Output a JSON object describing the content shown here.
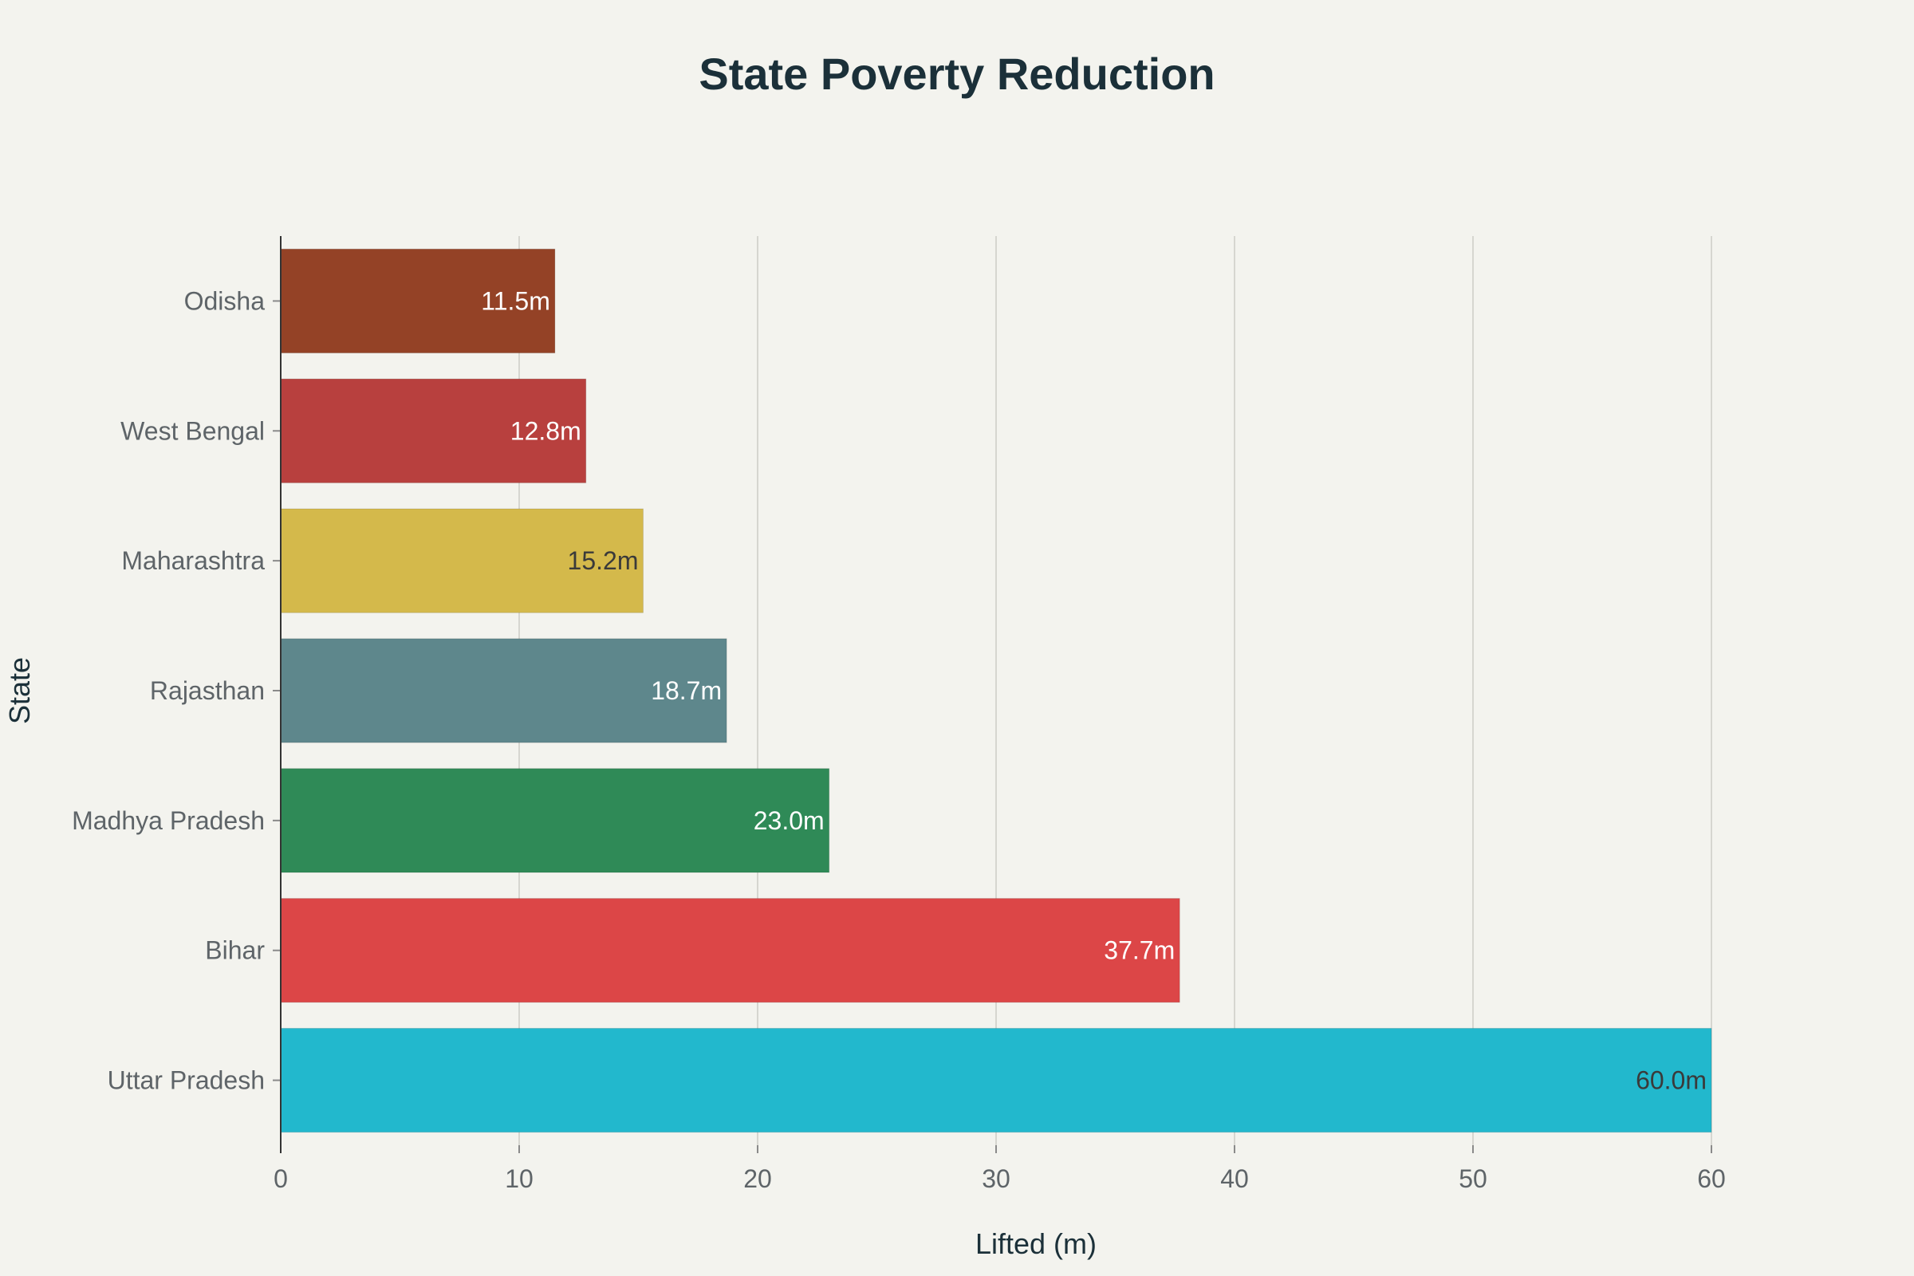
{
  "chart_data": {
    "type": "bar",
    "orientation": "horizontal",
    "title": "State Poverty Reduction",
    "xlabel": "Lifted (m)",
    "ylabel": "State",
    "xlim": [
      0,
      60
    ],
    "xticks": [
      0,
      10,
      20,
      30,
      40,
      50,
      60
    ],
    "grid": true,
    "categories": [
      "Odisha",
      "West Bengal",
      "Maharashtra",
      "Rajasthan",
      "Madhya Pradesh",
      "Bihar",
      "Uttar Pradesh"
    ],
    "values": [
      11.5,
      12.8,
      15.2,
      18.7,
      23.0,
      37.7,
      60.0
    ],
    "data_labels": [
      "11.5m",
      "12.8m",
      "15.2m",
      "18.7m",
      "23.0m",
      "37.7m",
      "60.0m"
    ],
    "colors": [
      "#944226",
      "#b8403e",
      "#d4b94b",
      "#5e878c",
      "#2f8a57",
      "#dc4647",
      "#22b8cd"
    ],
    "label_colors": [
      "#ffffff",
      "#ffffff",
      "#3a3a3a",
      "#ffffff",
      "#ffffff",
      "#ffffff",
      "#3a3a3a"
    ]
  }
}
